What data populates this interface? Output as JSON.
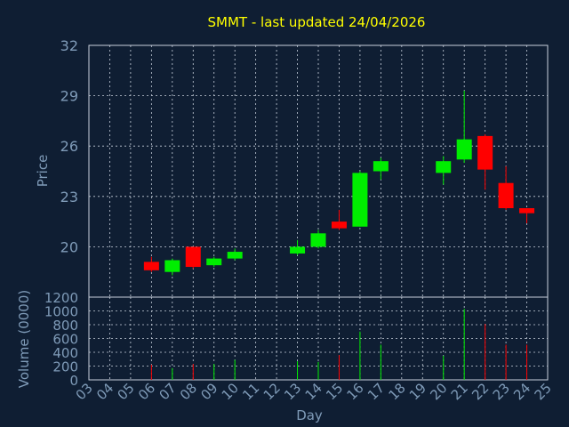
{
  "chart_data": {
    "type": "candlestick",
    "title": "SMMT - last updated 24/04/2026",
    "xlabel": "Day",
    "price_panel": {
      "ylabel": "Price",
      "ylim": [
        17.0,
        32.0
      ],
      "yticks": [
        "20",
        "23",
        "26",
        "29",
        "32"
      ],
      "grid": true
    },
    "volume_panel": {
      "ylabel": "Volume (0000)",
      "ylim": [
        0,
        1200
      ],
      "yticks": [
        "0",
        "200",
        "400",
        "600",
        "800",
        "1000",
        "1200"
      ],
      "grid": true
    },
    "x_ticks": [
      "03",
      "04",
      "05",
      "06",
      "07",
      "08",
      "09",
      "10",
      "11",
      "12",
      "13",
      "14",
      "15",
      "16",
      "17",
      "18",
      "19",
      "20",
      "21",
      "22",
      "23",
      "24",
      "25"
    ],
    "candles": [
      {
        "day": "06",
        "open": 19.1,
        "high": 19.4,
        "low": 18.5,
        "close": 18.6,
        "volume": 220
      },
      {
        "day": "07",
        "open": 18.5,
        "high": 19.3,
        "low": 18.3,
        "close": 19.2,
        "volume": 170
      },
      {
        "day": "08",
        "open": 20.0,
        "high": 20.0,
        "low": 18.7,
        "close": 18.8,
        "volume": 230
      },
      {
        "day": "09",
        "open": 18.9,
        "high": 19.4,
        "low": 18.8,
        "close": 19.3,
        "volume": 230
      },
      {
        "day": "10",
        "open": 19.3,
        "high": 19.9,
        "low": 19.2,
        "close": 19.7,
        "volume": 290
      },
      {
        "day": "13",
        "open": 19.6,
        "high": 20.4,
        "low": 19.5,
        "close": 20.0,
        "volume": 270
      },
      {
        "day": "14",
        "open": 20.0,
        "high": 21.0,
        "low": 19.9,
        "close": 20.8,
        "volume": 260
      },
      {
        "day": "15",
        "open": 21.5,
        "high": 22.2,
        "low": 21.0,
        "close": 21.1,
        "volume": 360
      },
      {
        "day": "16",
        "open": 21.2,
        "high": 24.5,
        "low": 21.2,
        "close": 24.4,
        "volume": 700
      },
      {
        "day": "17",
        "open": 24.5,
        "high": 25.3,
        "low": 24.0,
        "close": 25.1,
        "volume": 510
      },
      {
        "day": "20",
        "open": 24.4,
        "high": 25.4,
        "low": 23.7,
        "close": 25.1,
        "volume": 350
      },
      {
        "day": "21",
        "open": 25.2,
        "high": 29.3,
        "low": 25.0,
        "close": 26.4,
        "volume": 1030
      },
      {
        "day": "22",
        "open": 26.6,
        "high": 26.7,
        "low": 23.4,
        "close": 24.6,
        "volume": 810
      },
      {
        "day": "23",
        "open": 23.8,
        "high": 24.8,
        "low": 22.2,
        "close": 22.3,
        "volume": 510
      },
      {
        "day": "24",
        "open": 22.3,
        "high": 22.3,
        "low": 21.4,
        "close": 22.0,
        "volume": 510
      }
    ],
    "colors": {
      "background": "#0f1e33",
      "title": "#ffff00",
      "axis_text": "#7f9bb8",
      "grid": "#c8d0dc",
      "up": "#00ee00",
      "down": "#ff0000"
    }
  }
}
